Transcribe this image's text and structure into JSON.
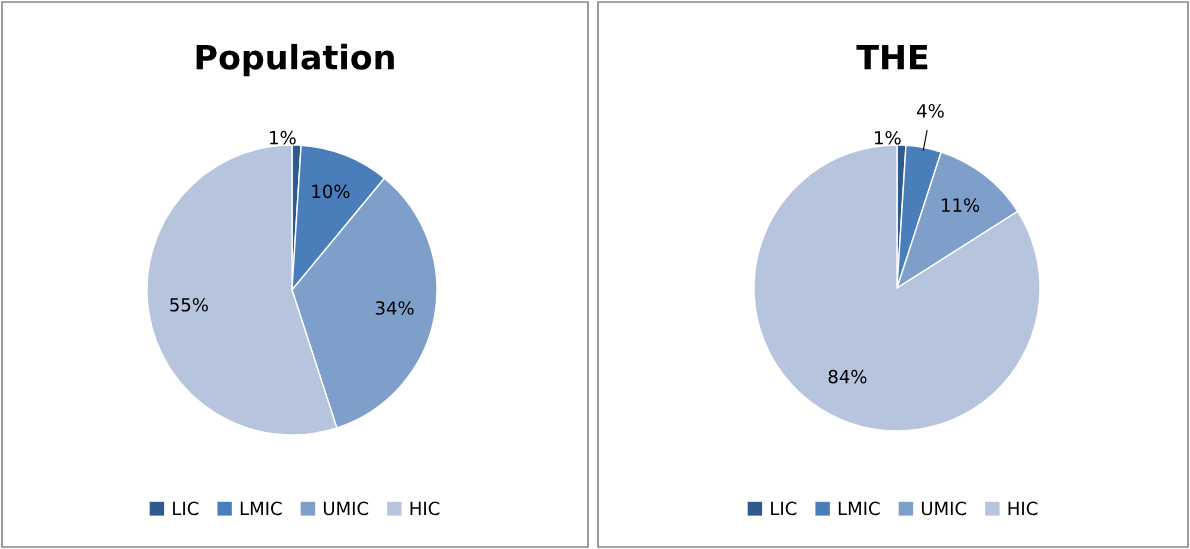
{
  "chart_data": [
    {
      "type": "pie",
      "title": "Population",
      "categories": [
        "LIC",
        "LMIC",
        "UMIC",
        "HIC"
      ],
      "values": [
        1,
        10,
        34,
        55
      ],
      "value_labels": [
        "1%",
        "10%",
        "34%",
        "55%"
      ],
      "colors": [
        "#2e5b8e",
        "#4a7ebb",
        "#7f9fcb",
        "#b7c4de"
      ],
      "legend": "bottom"
    },
    {
      "type": "pie",
      "title": "THE",
      "categories": [
        "LIC",
        "LMIC",
        "UMIC",
        "HIC"
      ],
      "values": [
        1,
        4,
        11,
        84
      ],
      "value_labels": [
        "1%",
        "4%",
        "11%",
        "84%"
      ],
      "colors": [
        "#2e5b8e",
        "#4a7ebb",
        "#7f9fcb",
        "#b7c4de"
      ],
      "legend": "bottom"
    }
  ]
}
